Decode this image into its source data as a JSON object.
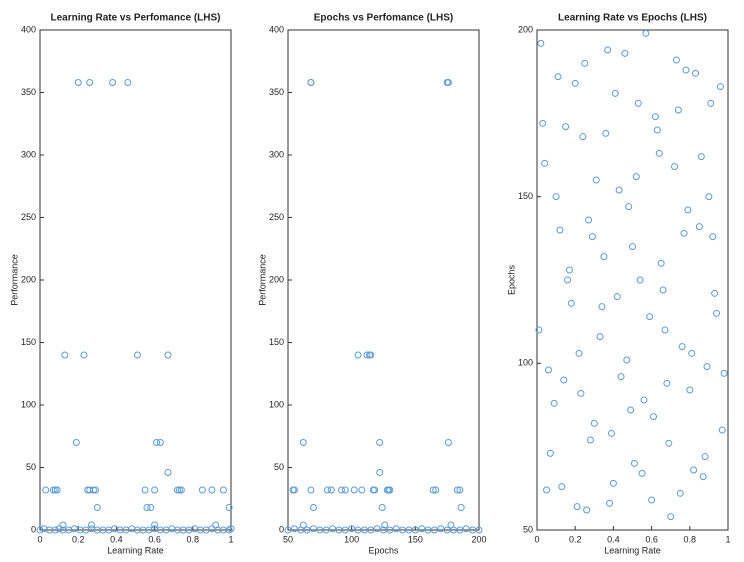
{
  "chart_data": [
    {
      "type": "scatter",
      "title": "Learning Rate vs Perfomance (LHS)",
      "xlabel": "Learning Rate",
      "ylabel": "Performance",
      "color": "#5b9bd5",
      "xlim": [
        0,
        1
      ],
      "ylim": [
        0,
        400
      ],
      "xticks": [
        0,
        0.2,
        0.4,
        0.6,
        0.8,
        1
      ],
      "yticks": [
        0,
        50,
        100,
        150,
        200,
        250,
        300,
        350,
        400
      ],
      "x": [
        0.2,
        0.26,
        0.38,
        0.46,
        0.13,
        0.23,
        0.51,
        0.67,
        0.19,
        0.61,
        0.63,
        0.67,
        0.03,
        0.07,
        0.08,
        0.09,
        0.25,
        0.26,
        0.28,
        0.29,
        0.55,
        0.6,
        0.72,
        0.73,
        0.74,
        0.85,
        0.9,
        0.96,
        0.3,
        0.56,
        0.58,
        0.99,
        0.12,
        0.27,
        0.6,
        0.92,
        0,
        0.02,
        0.05,
        0.08,
        0.1,
        0.12,
        0.15,
        0.18,
        0.21,
        0.24,
        0.27,
        0.3,
        0.33,
        0.36,
        0.39,
        0.42,
        0.45,
        0.48,
        0.51,
        0.54,
        0.57,
        0.6,
        0.63,
        0.66,
        0.69,
        0.72,
        0.75,
        0.78,
        0.81,
        0.84,
        0.87,
        0.9,
        0.93,
        0.96,
        0.99,
        1
      ],
      "y": [
        358,
        358,
        358,
        358,
        140,
        140,
        140,
        140,
        70,
        70,
        70,
        46,
        32,
        32,
        32,
        32,
        32,
        32,
        32,
        32,
        32,
        32,
        32,
        32,
        32,
        32,
        32,
        32,
        18,
        18,
        18,
        18,
        4,
        4,
        4,
        4,
        0,
        1,
        0,
        0,
        1,
        0,
        0,
        1,
        0,
        0,
        1,
        0,
        0,
        0,
        1,
        0,
        0,
        1,
        0,
        0,
        0,
        1,
        0,
        0,
        1,
        0,
        0,
        0,
        1,
        0,
        0,
        1,
        0,
        0,
        0,
        1
      ]
    },
    {
      "type": "scatter",
      "title": "Epochs vs Perfomance (LHS)",
      "xlabel": "Epochs",
      "ylabel": "Performance",
      "color": "#5b9bd5",
      "xlim": [
        50,
        200
      ],
      "ylim": [
        0,
        400
      ],
      "xticks": [
        50,
        100,
        150,
        200
      ],
      "yticks": [
        0,
        50,
        100,
        150,
        200,
        250,
        300,
        350,
        400
      ],
      "x": [
        68,
        68,
        175,
        176,
        105,
        112,
        114,
        115,
        62,
        122,
        176,
        122,
        54,
        55,
        68,
        81,
        84,
        92,
        95,
        102,
        108,
        117,
        118,
        128,
        129,
        130,
        164,
        166,
        183,
        185,
        70,
        124,
        186,
        62,
        126,
        178,
        50,
        55,
        60,
        65,
        70,
        75,
        80,
        85,
        90,
        95,
        100,
        105,
        110,
        115,
        120,
        125,
        130,
        135,
        140,
        145,
        150,
        155,
        160,
        165,
        170,
        175,
        180,
        185,
        190,
        195,
        200
      ],
      "y": [
        358,
        358,
        358,
        358,
        140,
        140,
        140,
        140,
        70,
        70,
        70,
        46,
        32,
        32,
        32,
        32,
        32,
        32,
        32,
        32,
        32,
        32,
        32,
        32,
        32,
        32,
        32,
        32,
        32,
        32,
        18,
        18,
        18,
        4,
        4,
        4,
        0,
        1,
        0,
        0,
        1,
        0,
        0,
        1,
        0,
        0,
        1,
        0,
        0,
        0,
        1,
        0,
        0,
        1,
        0,
        0,
        0,
        1,
        0,
        0,
        1,
        0,
        0,
        0,
        1,
        0,
        0
      ]
    },
    {
      "type": "scatter",
      "title": "Learning Rate vs Epochs (LHS)",
      "xlabel": "Learning Rate",
      "ylabel": "Epochs",
      "color": "#5b9bd5",
      "xlim": [
        0,
        1
      ],
      "ylim": [
        50,
        200
      ],
      "xticks": [
        0,
        0.2,
        0.4,
        0.6,
        0.8,
        1
      ],
      "yticks": [
        50,
        100,
        150,
        200
      ],
      "x": [
        0.02,
        0.05,
        0.09,
        0.12,
        0.15,
        0.18,
        0.22,
        0.25,
        0.28,
        0.31,
        0.35,
        0.38,
        0.41,
        0.44,
        0.48,
        0.51,
        0.54,
        0.57,
        0.61,
        0.64,
        0.67,
        0.7,
        0.74,
        0.77,
        0.8,
        0.83,
        0.87,
        0.9,
        0.93,
        0.97,
        0.01,
        0.04,
        0.07,
        0.11,
        0.14,
        0.17,
        0.21,
        0.24,
        0.27,
        0.3,
        0.34,
        0.37,
        0.4,
        0.43,
        0.47,
        0.5,
        0.53,
        0.56,
        0.6,
        0.63,
        0.66,
        0.69,
        0.73,
        0.76,
        0.79,
        0.82,
        0.86,
        0.89,
        0.92,
        0.96,
        0.03,
        0.06,
        0.1,
        0.13,
        0.16,
        0.2,
        0.23,
        0.26,
        0.29,
        0.33,
        0.36,
        0.39,
        0.42,
        0.46,
        0.49,
        0.52,
        0.55,
        0.59,
        0.62,
        0.65,
        0.68,
        0.72,
        0.75,
        0.78,
        0.81,
        0.85,
        0.88,
        0.91,
        0.94,
        0.98
      ],
      "y": [
        196,
        62,
        88,
        140,
        171,
        118,
        103,
        190,
        77,
        155,
        132,
        58,
        181,
        96,
        147,
        70,
        125,
        199,
        84,
        163,
        110,
        54,
        176,
        139,
        92,
        187,
        66,
        150,
        121,
        80,
        110,
        160,
        73,
        186,
        95,
        128,
        57,
        168,
        143,
        82,
        117,
        194,
        64,
        152,
        101,
        135,
        178,
        89,
        59,
        170,
        122,
        76,
        191,
        105,
        146,
        68,
        162,
        99,
        138,
        183,
        172,
        98,
        150,
        63,
        125,
        184,
        91,
        56,
        138,
        108,
        169,
        79,
        120,
        193,
        86,
        156,
        67,
        114,
        174,
        130,
        94,
        159,
        61,
        188,
        103,
        141,
        72,
        178,
        115,
        97
      ]
    }
  ]
}
